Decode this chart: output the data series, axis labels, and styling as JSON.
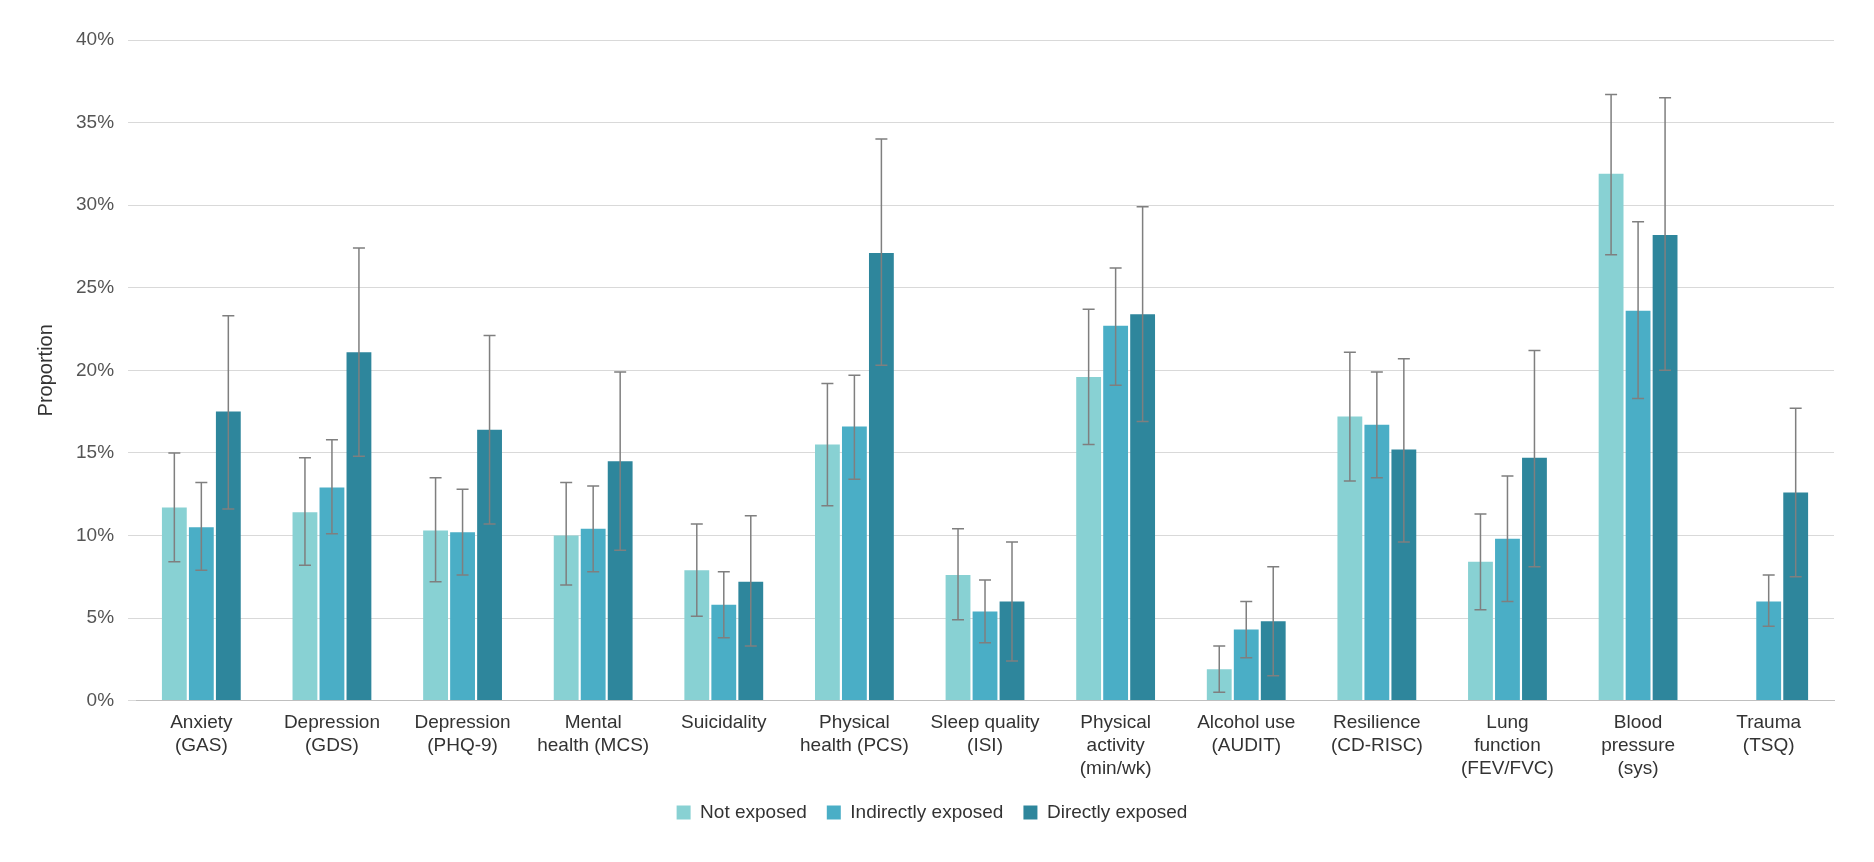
{
  "chart_data": {
    "type": "bar",
    "ylabel": "Proportion",
    "categories": [
      "Anxiety (GAS)",
      "Depression (GDS)",
      "Depression (PHQ-9)",
      "Mental health (MCS)",
      "Suicidality",
      "Physical health (PCS)",
      "Sleep quality (ISI)",
      "Physical activity (min/wk)",
      "Alcohol use (AUDIT)",
      "Resilience (CD-RISC)",
      "Lung function (FEV/FVC)",
      "Blood pressure (sys)",
      "Trauma (TSQ)"
    ],
    "series": [
      {
        "name": "Not exposed",
        "color": "#88d1d3",
        "values": [
          11.7,
          11.4,
          10.3,
          10.0,
          7.9,
          15.5,
          7.6,
          19.6,
          1.9,
          17.2,
          8.4,
          31.9,
          null
        ],
        "errors": [
          [
            8.4,
            15.0
          ],
          [
            8.2,
            14.7
          ],
          [
            7.2,
            13.5
          ],
          [
            7.0,
            13.2
          ],
          [
            5.1,
            10.7
          ],
          [
            11.8,
            19.2
          ],
          [
            4.9,
            10.4
          ],
          [
            15.5,
            23.7
          ],
          [
            0.5,
            3.3
          ],
          [
            13.3,
            21.1
          ],
          [
            5.5,
            11.3
          ],
          [
            27.0,
            36.7
          ],
          null
        ]
      },
      {
        "name": "Indirectly exposed",
        "color": "#4aaec6",
        "values": [
          10.5,
          12.9,
          10.2,
          10.4,
          5.8,
          16.6,
          5.4,
          22.7,
          4.3,
          16.7,
          9.8,
          23.6,
          6.0
        ],
        "errors": [
          [
            7.9,
            13.2
          ],
          [
            10.1,
            15.8
          ],
          [
            7.6,
            12.8
          ],
          [
            7.8,
            13.0
          ],
          [
            3.8,
            7.8
          ],
          [
            13.4,
            19.7
          ],
          [
            3.5,
            7.3
          ],
          [
            19.1,
            26.2
          ],
          [
            2.6,
            6.0
          ],
          [
            13.5,
            19.9
          ],
          [
            6.0,
            13.6
          ],
          [
            18.3,
            29.0
          ],
          [
            4.5,
            7.6
          ]
        ]
      },
      {
        "name": "Directly exposed",
        "color": "#2e869c",
        "values": [
          17.5,
          21.1,
          16.4,
          14.5,
          7.2,
          27.1,
          6.0,
          23.4,
          4.8,
          15.2,
          14.7,
          28.2,
          12.6
        ],
        "errors": [
          [
            11.6,
            23.3
          ],
          [
            14.8,
            27.4
          ],
          [
            10.7,
            22.1
          ],
          [
            9.1,
            19.9
          ],
          [
            3.3,
            11.2
          ],
          [
            20.3,
            34.0
          ],
          [
            2.4,
            9.6
          ],
          [
            16.9,
            29.9
          ],
          [
            1.5,
            8.1
          ],
          [
            9.6,
            20.7
          ],
          [
            8.1,
            21.2
          ],
          [
            20.0,
            36.5
          ],
          [
            7.5,
            17.7
          ]
        ]
      }
    ],
    "ylim": [
      0,
      40
    ],
    "yticks": [
      {
        "value": 0,
        "label": "0%"
      },
      {
        "value": 5,
        "label": "5%"
      },
      {
        "value": 10,
        "label": "10%"
      },
      {
        "value": 15,
        "label": "15%"
      },
      {
        "value": 20,
        "label": "20%"
      },
      {
        "value": 25,
        "label": "25%"
      },
      {
        "value": 30,
        "label": "30%"
      },
      {
        "value": 35,
        "label": "35%"
      },
      {
        "value": 40,
        "label": "40%"
      }
    ],
    "grid": "y",
    "legend": "bottom"
  }
}
